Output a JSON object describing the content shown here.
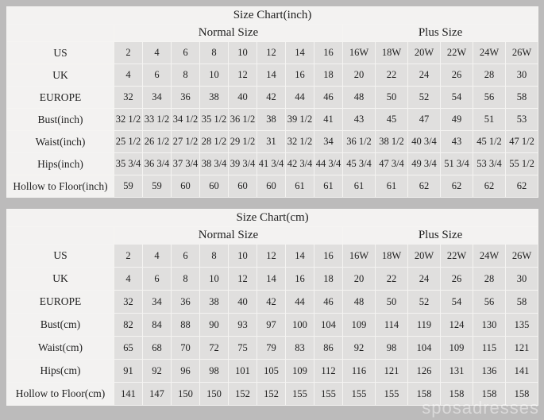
{
  "page": {
    "background": "#bcbbbb",
    "watermark": "sposadresses",
    "colors": {
      "cell_background": "#e0dfde",
      "header_background": "#f3f2f1",
      "border": "#f5f4f2",
      "text": "#1f1f1f"
    }
  },
  "chart_data": [
    {
      "type": "table",
      "title": "Size Chart(inch)",
      "column_groups": [
        {
          "label": "",
          "span": 1
        },
        {
          "label": "Normal Size",
          "span": 8
        },
        {
          "label": "Plus Size",
          "span": 6
        }
      ],
      "rows": [
        {
          "label": "US",
          "values": [
            "2",
            "4",
            "6",
            "8",
            "10",
            "12",
            "14",
            "16",
            "16W",
            "18W",
            "20W",
            "22W",
            "24W",
            "26W"
          ]
        },
        {
          "label": "UK",
          "values": [
            "4",
            "6",
            "8",
            "10",
            "12",
            "14",
            "16",
            "18",
            "20",
            "22",
            "24",
            "26",
            "28",
            "30"
          ]
        },
        {
          "label": "EUROPE",
          "values": [
            "32",
            "34",
            "36",
            "38",
            "40",
            "42",
            "44",
            "46",
            "48",
            "50",
            "52",
            "54",
            "56",
            "58"
          ]
        },
        {
          "label": "Bust(inch)",
          "values": [
            "32 1/2",
            "33 1/2",
            "34 1/2",
            "35 1/2",
            "36 1/2",
            "38",
            "39 1/2",
            "41",
            "43",
            "45",
            "47",
            "49",
            "51",
            "53"
          ]
        },
        {
          "label": "Waist(inch)",
          "values": [
            "25 1/2",
            "26 1/2",
            "27 1/2",
            "28 1/2",
            "29 1/2",
            "31",
            "32 1/2",
            "34",
            "36 1/2",
            "38 1/2",
            "40 3/4",
            "43",
            "45 1/2",
            "47 1/2"
          ]
        },
        {
          "label": "Hips(inch)",
          "values": [
            "35 3/4",
            "36 3/4",
            "37 3/4",
            "38 3/4",
            "39 3/4",
            "41 3/4",
            "42 3/4",
            "44 3/4",
            "45 3/4",
            "47 3/4",
            "49 3/4",
            "51 3/4",
            "53 3/4",
            "55 1/2"
          ]
        },
        {
          "label": "Hollow to Floor(inch)",
          "values": [
            "59",
            "59",
            "60",
            "60",
            "60",
            "60",
            "61",
            "61",
            "61",
            "61",
            "62",
            "62",
            "62",
            "62"
          ]
        }
      ]
    },
    {
      "type": "table",
      "title": "Size Chart(cm)",
      "column_groups": [
        {
          "label": "",
          "span": 1
        },
        {
          "label": "Normal Size",
          "span": 8
        },
        {
          "label": "Plus Size",
          "span": 6
        }
      ],
      "rows": [
        {
          "label": "US",
          "values": [
            "2",
            "4",
            "6",
            "8",
            "10",
            "12",
            "14",
            "16",
            "16W",
            "18W",
            "20W",
            "22W",
            "24W",
            "26W"
          ]
        },
        {
          "label": "UK",
          "values": [
            "4",
            "6",
            "8",
            "10",
            "12",
            "14",
            "16",
            "18",
            "20",
            "22",
            "24",
            "26",
            "28",
            "30"
          ]
        },
        {
          "label": "EUROPE",
          "values": [
            "32",
            "34",
            "36",
            "38",
            "40",
            "42",
            "44",
            "46",
            "48",
            "50",
            "52",
            "54",
            "56",
            "58"
          ]
        },
        {
          "label": "Bust(cm)",
          "values": [
            "82",
            "84",
            "88",
            "90",
            "93",
            "97",
            "100",
            "104",
            "109",
            "114",
            "119",
            "124",
            "130",
            "135"
          ]
        },
        {
          "label": "Waist(cm)",
          "values": [
            "65",
            "68",
            "70",
            "72",
            "75",
            "79",
            "83",
            "86",
            "92",
            "98",
            "104",
            "109",
            "115",
            "121"
          ]
        },
        {
          "label": "Hips(cm)",
          "values": [
            "91",
            "92",
            "96",
            "98",
            "101",
            "105",
            "109",
            "112",
            "116",
            "121",
            "126",
            "131",
            "136",
            "141"
          ]
        },
        {
          "label": "Hollow to Floor(cm)",
          "values": [
            "141",
            "147",
            "150",
            "150",
            "152",
            "152",
            "155",
            "155",
            "155",
            "155",
            "158",
            "158",
            "158",
            "158"
          ]
        }
      ]
    }
  ]
}
